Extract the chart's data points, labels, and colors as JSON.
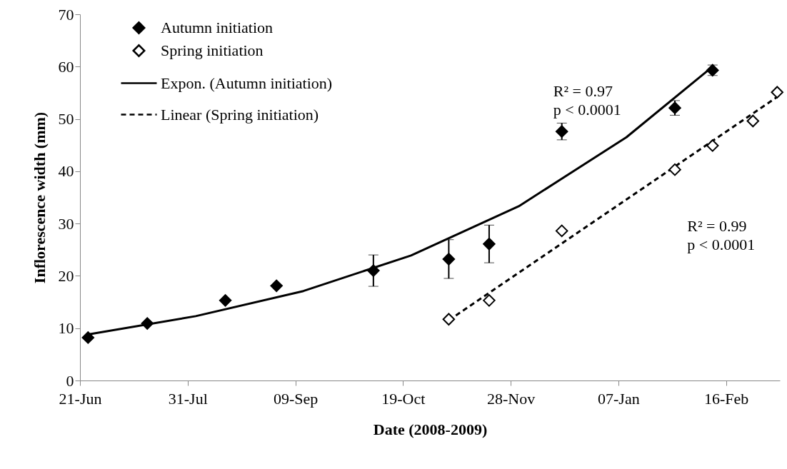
{
  "chart_data": {
    "type": "scatter",
    "xlabel": "Date (2008-2009)",
    "ylabel": "Inflorescence width (mm)",
    "xlim": [
      "2008-06-21",
      "2009-03-08"
    ],
    "xticks": [
      {
        "value": "2008-06-21",
        "label": "21-Jun"
      },
      {
        "value": "2008-07-31",
        "label": "31-Jul"
      },
      {
        "value": "2008-09-09",
        "label": "09-Sep"
      },
      {
        "value": "2008-10-19",
        "label": "19-Oct"
      },
      {
        "value": "2008-11-28",
        "label": "28-Nov"
      },
      {
        "value": "2009-01-07",
        "label": "07-Jan"
      },
      {
        "value": "2009-02-16",
        "label": "16-Feb"
      }
    ],
    "ylim": [
      0,
      70
    ],
    "yticks": [
      0,
      10,
      20,
      30,
      40,
      50,
      60,
      70
    ],
    "grid": false,
    "legend": "top left",
    "series": [
      {
        "name": "Autumn initiation",
        "marker": "diamond",
        "color": "#000000",
        "x": [
          "2008-06-24",
          "2008-07-16",
          "2008-08-14",
          "2008-09-02",
          "2008-10-08",
          "2008-11-05",
          "2008-11-20",
          "2008-12-17",
          "2009-01-28",
          "2009-02-11"
        ],
        "values": [
          8.2,
          10.9,
          15.3,
          18.1,
          21.0,
          23.2,
          26.1,
          47.6,
          52.1,
          59.3
        ],
        "errors": [
          null,
          null,
          null,
          null,
          3.0,
          3.7,
          3.6,
          1.6,
          1.4,
          1.0
        ]
      },
      {
        "name": "Spring initiation",
        "marker": "diamond",
        "color": "#ffffff",
        "x": [
          "2008-11-05",
          "2008-11-20",
          "2008-12-17",
          "2009-01-28",
          "2009-02-11",
          "2009-02-26",
          "2009-03-07"
        ],
        "values": [
          11.7,
          15.3,
          28.6,
          40.3,
          44.9,
          49.6,
          55.1
        ]
      },
      {
        "name": "Expon. (Autumn initiation)",
        "type": "line",
        "marker": "none",
        "line_style": "solid",
        "color": "#000000",
        "x": [
          "2008-06-24",
          "2008-08-03",
          "2008-09-12",
          "2008-10-22",
          "2008-12-01",
          "2009-01-10",
          "2009-02-11"
        ],
        "values": [
          8.8,
          12.3,
          17.1,
          23.9,
          33.3,
          46.5,
          60.0
        ]
      },
      {
        "name": "Linear (Spring initiation)",
        "type": "line",
        "marker": "none",
        "line_style": "dashed",
        "color": "#000000",
        "x": [
          "2008-11-05",
          "2009-03-07"
        ],
        "values": [
          11.5,
          54.2
        ]
      }
    ],
    "annotations": [
      "R² = 0.97\n p < 0.0001",
      "R² = 0.99\n p < 0.0001"
    ]
  }
}
